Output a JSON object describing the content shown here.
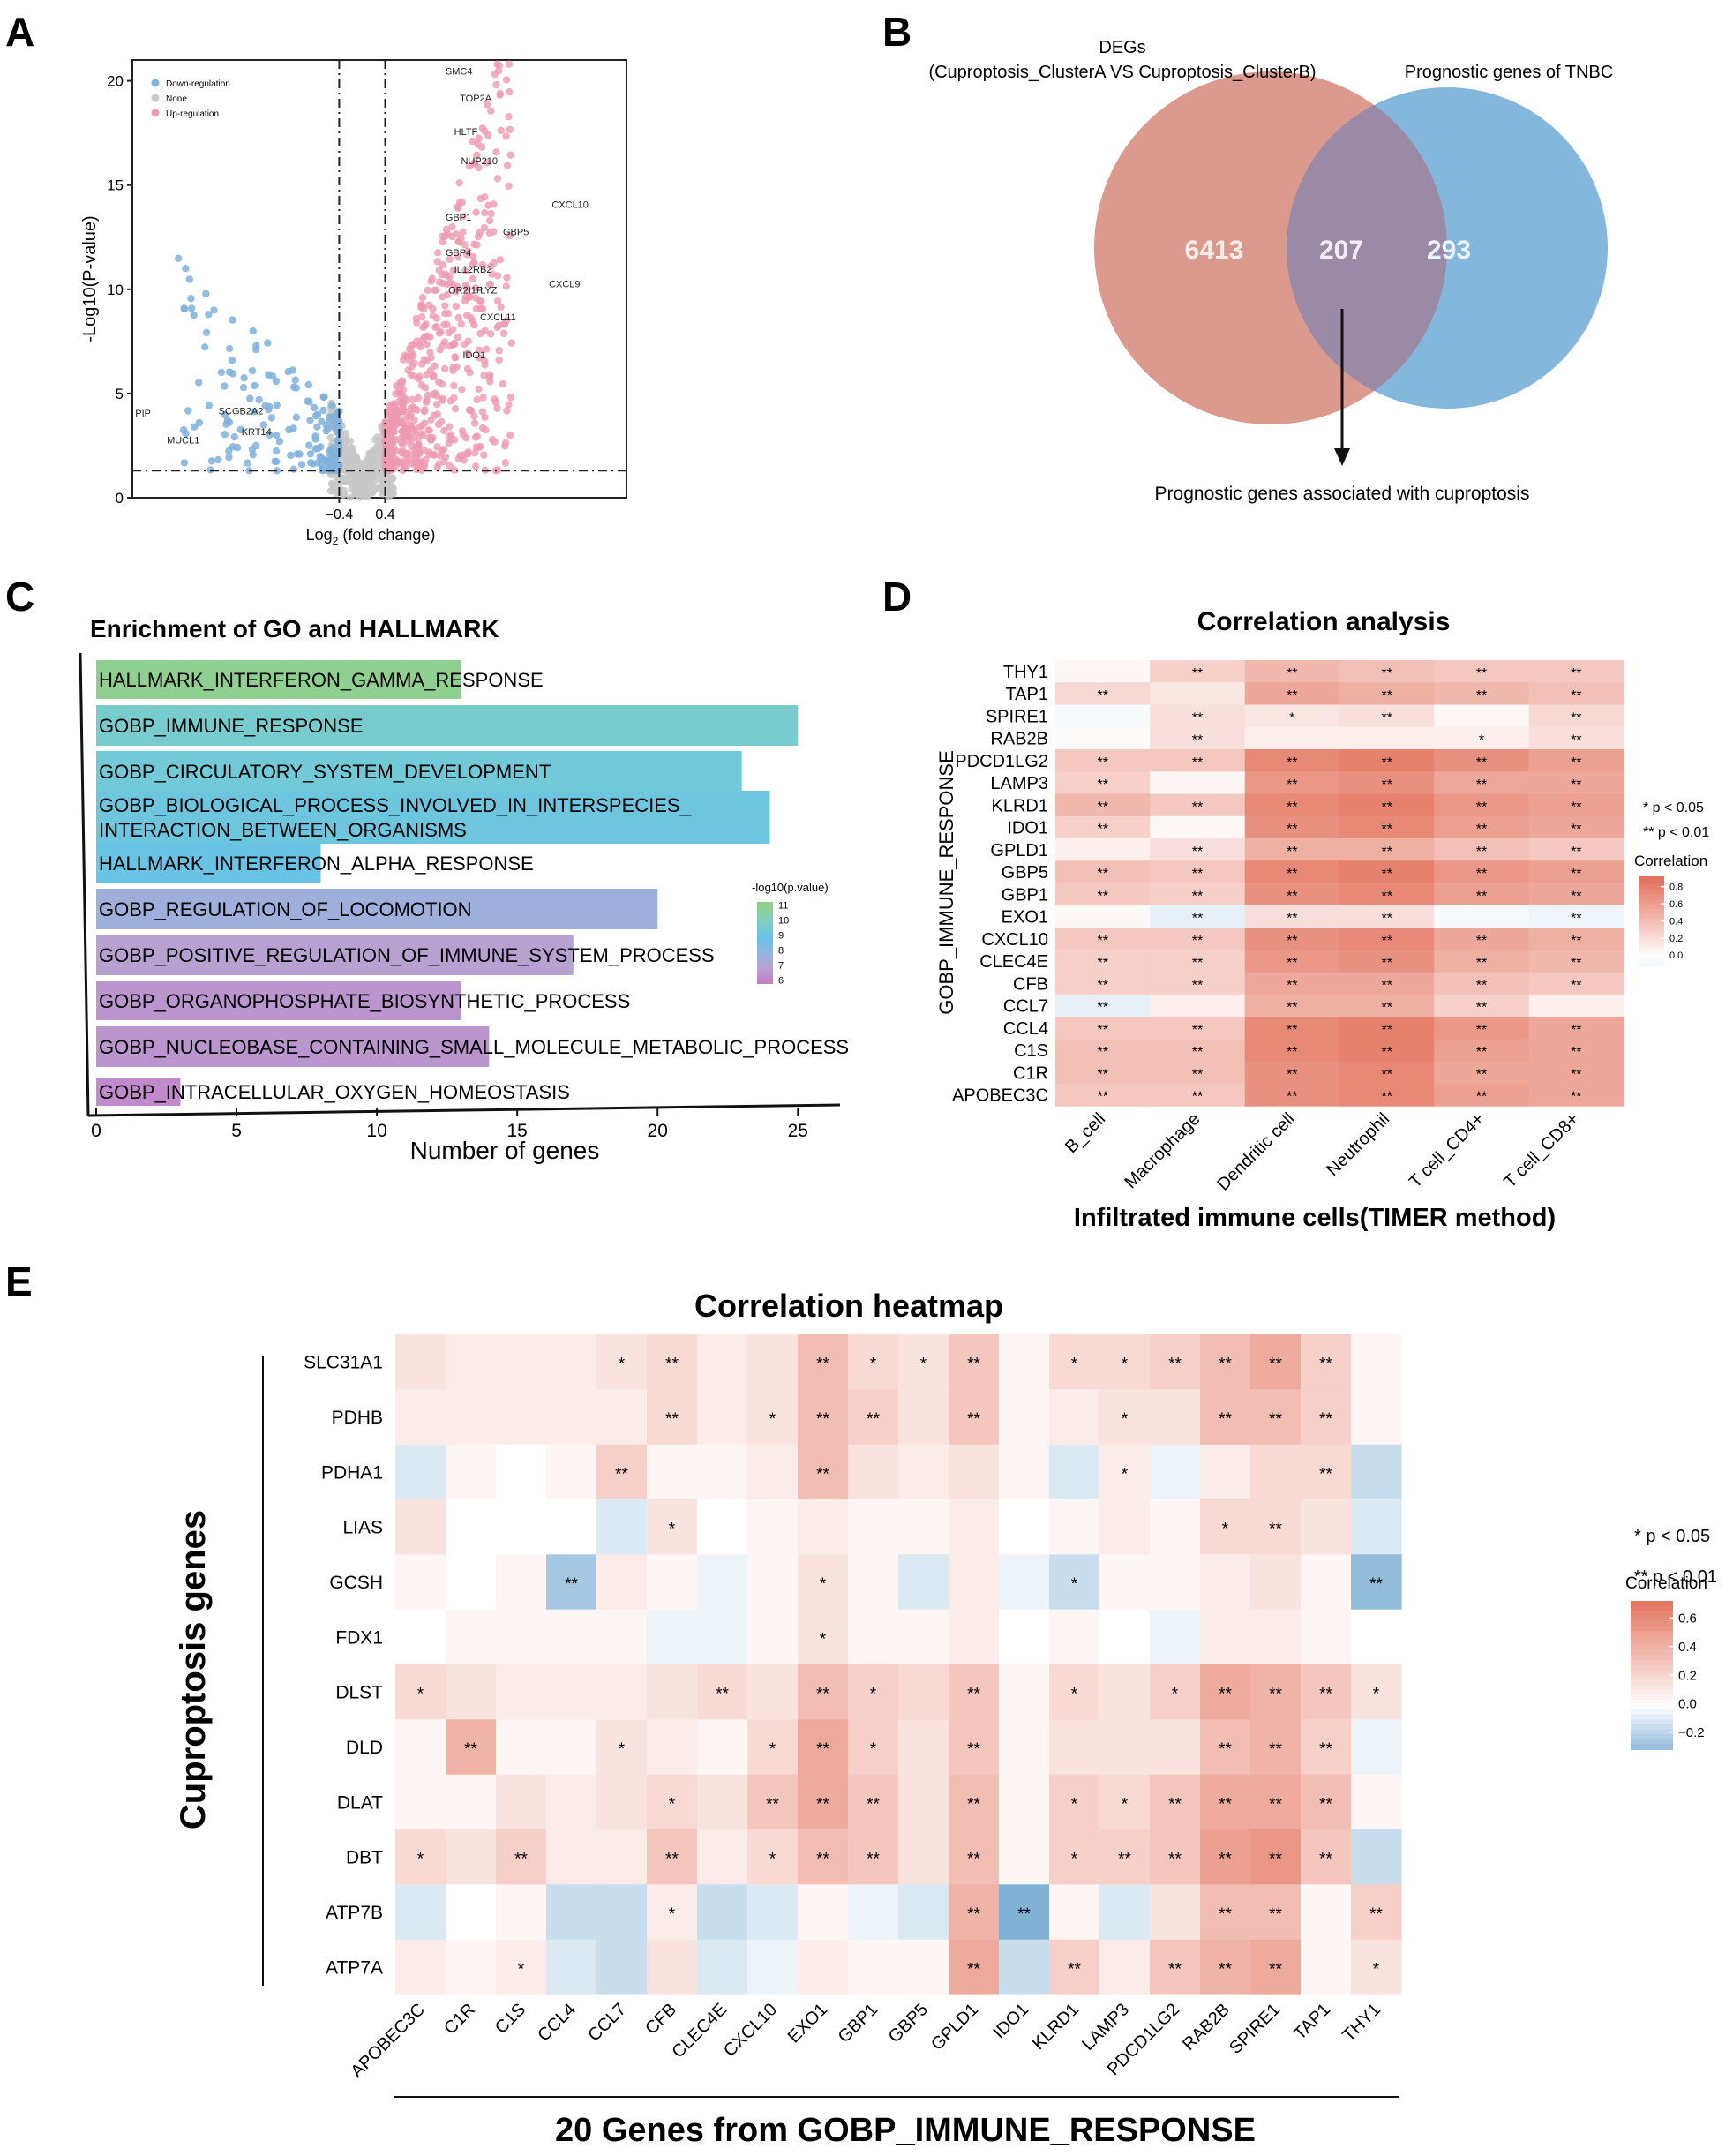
{
  "panel_letters": [
    "A",
    "B",
    "C",
    "D",
    "E"
  ],
  "chart_data": [
    {
      "panel": "A",
      "type": "scatter",
      "title": "",
      "xlabel_main": "Log",
      "xlabel_sub": "2",
      "xlabel_rest": " (fold change)",
      "ylabel": "-Log10(P-value)",
      "xlim": [
        -4,
        4.6
      ],
      "ylim": [
        0,
        21
      ],
      "x_ticks": [
        -0.4,
        0.4
      ],
      "x_tick_labels": [
        "−0.4",
        "0.4"
      ],
      "y_ticks": [
        0,
        5,
        10,
        15,
        20
      ],
      "y_tick_labels": [
        "0",
        "5",
        "10",
        "15",
        "20"
      ],
      "vlines": [
        -0.4,
        0.4
      ],
      "hline": 1.3,
      "legend": [
        {
          "label": "Down-regulation",
          "color": "#7fb2dc"
        },
        {
          "label": "None",
          "color": "#c8c8c8"
        },
        {
          "label": "Up-regulation",
          "color": "#ee9ab2"
        }
      ],
      "labeled_genes": [
        {
          "name": "SMC4",
          "x": 1.45,
          "y": 20.3
        },
        {
          "name": "TOP2A",
          "x": 1.7,
          "y": 19.0
        },
        {
          "name": "HLTF",
          "x": 1.6,
          "y": 17.4
        },
        {
          "name": "NUP210",
          "x": 1.72,
          "y": 16.0
        },
        {
          "name": "CXCL10",
          "x": 3.3,
          "y": 13.9
        },
        {
          "name": "GBP1",
          "x": 1.45,
          "y": 13.3
        },
        {
          "name": "GBP5",
          "x": 2.45,
          "y": 12.6
        },
        {
          "name": "GBP4",
          "x": 1.45,
          "y": 11.6
        },
        {
          "name": "IL12RB2",
          "x": 1.6,
          "y": 10.8
        },
        {
          "name": "CXCL9",
          "x": 3.25,
          "y": 10.1
        },
        {
          "name": "OR2I1P",
          "x": 1.5,
          "y": 9.8
        },
        {
          "name": "LYZ",
          "x": 2.05,
          "y": 9.8
        },
        {
          "name": "CXCL11",
          "x": 2.05,
          "y": 8.5
        },
        {
          "name": "IDO1",
          "x": 1.75,
          "y": 6.7
        },
        {
          "name": "PIP",
          "x": -3.95,
          "y": 3.9
        },
        {
          "name": "SCGB2A2",
          "x": -2.5,
          "y": 4.0
        },
        {
          "name": "KRT14",
          "x": -2.1,
          "y": 3.0
        },
        {
          "name": "MUCL1",
          "x": -3.4,
          "y": 2.6
        }
      ]
    },
    {
      "panel": "B",
      "type": "venn",
      "set_a_label_line1": "DEGs",
      "set_a_label_line2": "(Cuproptosis_ClusterA VS Cuproptosis_ClusterB)",
      "set_b_label": "Prognostic genes of TNBC",
      "only_a": 6413,
      "intersection": 207,
      "only_b": 293,
      "colors": {
        "a": "#dc9a8e",
        "b": "#84b7dc",
        "overlap": "#9a8aa6"
      },
      "annotation": "Prognostic genes associated with cuproptosis"
    },
    {
      "panel": "C",
      "type": "bar",
      "orientation": "horizontal",
      "title": "Enrichment of GO and HALLMARK",
      "xlabel": "Number of genes",
      "xlim": [
        0,
        26.5
      ],
      "x_ticks": [
        0,
        5,
        10,
        15,
        20,
        25
      ],
      "categories": [
        [
          "HALLMARK_INTERFERON_GAMMA_RESPONSE"
        ],
        [
          "GOBP_IMMUNE_RESPONSE"
        ],
        [
          "GOBP_CIRCULATORY_SYSTEM_DEVELOPMENT"
        ],
        [
          "GOBP_BIOLOGICAL_PROCESS_INVOLVED_IN_INTERSPECIES_",
          "INTERACTION_BETWEEN_ORGANISMS"
        ],
        [
          "HALLMARK_INTERFERON_ALPHA_RESPONSE"
        ],
        [
          "GOBP_REGULATION_OF_LOCOMOTION"
        ],
        [
          "GOBP_POSITIVE_REGULATION_OF_IMMUNE_SYSTEM_PROCESS"
        ],
        [
          "GOBP_ORGANOPHOSPHATE_BIOSYNTHETIC_PROCESS"
        ],
        [
          "GOBP_NUCLEOBASE_CONTAINING_SMALL_MOLECULE_METABOLIC_PROCESS"
        ],
        [
          "GOBP_INTRACELLULAR_OXYGEN_HOMEOSTASIS"
        ]
      ],
      "values": [
        13,
        25,
        23,
        24,
        8,
        20,
        17,
        13,
        14,
        3
      ],
      "log10p": [
        11,
        9.8,
        9.5,
        9.3,
        9.1,
        7.6,
        6.9,
        6.6,
        6.6,
        6.3
      ],
      "legend_title": "-log10(p.value)",
      "legend_ticks": [
        11,
        10,
        9,
        8,
        7,
        6
      ]
    },
    {
      "panel": "D",
      "type": "heatmap",
      "title": "Correlation analysis",
      "xlabel": "Infiltrated immune cells(TIMER method)",
      "ylabel": "GOBP_IMMUNE_RESPONSE",
      "columns": [
        "B_cell",
        "Macrophage",
        "Dendritic cell",
        "Neutrophil",
        "T cell_CD4+",
        "T cell_CD8+"
      ],
      "rows": [
        "THY1",
        "TAP1",
        "SPIRE1",
        "RAB2B",
        "PDCD1LG2",
        "LAMP3",
        "KLRD1",
        "IDO1",
        "GPLD1",
        "GBP5",
        "GBP1",
        "EXO1",
        "CXCL10",
        "CLEC4E",
        "CFB",
        "CCL7",
        "CCL4",
        "C1S",
        "C1R",
        "APOBEC3C"
      ],
      "values": [
        [
          0.05,
          0.3,
          0.45,
          0.4,
          0.35,
          0.35
        ],
        [
          0.25,
          0.15,
          0.55,
          0.5,
          0.45,
          0.4
        ],
        [
          -0.05,
          0.2,
          0.15,
          0.2,
          0.05,
          0.25
        ],
        [
          0.02,
          0.2,
          0.1,
          0.1,
          0.1,
          0.2
        ],
        [
          0.35,
          0.35,
          0.75,
          0.8,
          0.7,
          0.6
        ],
        [
          0.3,
          0.05,
          0.65,
          0.7,
          0.55,
          0.55
        ],
        [
          0.45,
          0.35,
          0.75,
          0.8,
          0.65,
          0.6
        ],
        [
          0.3,
          0.05,
          0.7,
          0.75,
          0.6,
          0.55
        ],
        [
          0.1,
          0.2,
          0.5,
          0.5,
          0.4,
          0.35
        ],
        [
          0.4,
          0.35,
          0.75,
          0.8,
          0.65,
          0.6
        ],
        [
          0.35,
          0.3,
          0.7,
          0.75,
          0.6,
          0.55
        ],
        [
          0.05,
          -0.15,
          0.2,
          0.2,
          -0.05,
          -0.1
        ],
        [
          0.35,
          0.35,
          0.7,
          0.75,
          0.55,
          0.5
        ],
        [
          0.3,
          0.3,
          0.65,
          0.7,
          0.5,
          0.45
        ],
        [
          0.3,
          0.3,
          0.55,
          0.55,
          0.4,
          0.35
        ],
        [
          -0.15,
          0.1,
          0.5,
          0.5,
          0.3,
          0.1
        ],
        [
          0.35,
          0.35,
          0.75,
          0.8,
          0.65,
          0.55
        ],
        [
          0.4,
          0.4,
          0.75,
          0.8,
          0.6,
          0.55
        ],
        [
          0.4,
          0.4,
          0.7,
          0.75,
          0.55,
          0.55
        ],
        [
          0.35,
          0.35,
          0.7,
          0.75,
          0.6,
          0.55
        ]
      ],
      "significance": [
        [
          "",
          "**",
          "**",
          "**",
          "**",
          "**"
        ],
        [
          "**",
          "",
          "**",
          "**",
          "**",
          "**"
        ],
        [
          "",
          "**",
          "*",
          "**",
          "",
          "**"
        ],
        [
          "",
          "**",
          "",
          "",
          "*",
          "**"
        ],
        [
          "**",
          "**",
          "**",
          "**",
          "**",
          "**"
        ],
        [
          "**",
          "",
          "**",
          "**",
          "**",
          "**"
        ],
        [
          "**",
          "**",
          "**",
          "**",
          "**",
          "**"
        ],
        [
          "**",
          "",
          "**",
          "**",
          "**",
          "**"
        ],
        [
          "",
          "**",
          "**",
          "**",
          "**",
          "**"
        ],
        [
          "**",
          "**",
          "**",
          "**",
          "**",
          "**"
        ],
        [
          "**",
          "**",
          "**",
          "**",
          "**",
          "**"
        ],
        [
          "",
          "**",
          "**",
          "**",
          "",
          "**"
        ],
        [
          "**",
          "**",
          "**",
          "**",
          "**",
          "**"
        ],
        [
          "**",
          "**",
          "**",
          "**",
          "**",
          "**"
        ],
        [
          "**",
          "**",
          "**",
          "**",
          "**",
          "**"
        ],
        [
          "**",
          "",
          "**",
          "**",
          "**",
          ""
        ],
        [
          "**",
          "**",
          "**",
          "**",
          "**",
          "**"
        ],
        [
          "**",
          "**",
          "**",
          "**",
          "**",
          "**"
        ],
        [
          "**",
          "**",
          "**",
          "**",
          "**",
          "**"
        ],
        [
          "**",
          "**",
          "**",
          "**",
          "**",
          "**"
        ]
      ],
      "sig_legend": [
        "* p < 0.05",
        "** p < 0.01"
      ],
      "legend_title": "Correlation",
      "legend_ticks": [
        "0.8",
        "0.6",
        "0.4",
        "0.2",
        "0.0"
      ],
      "legend_tick_values": [
        0.8,
        0.6,
        0.4,
        0.2,
        0.0
      ]
    },
    {
      "panel": "E",
      "type": "heatmap",
      "title": "Correlation heatmap",
      "xlabel": "20 Genes from GOBP_IMMUNE_RESPONSE",
      "ylabel": "Cuproptosis genes",
      "columns": [
        "APOBEC3C",
        "C1R",
        "C1S",
        "CCL4",
        "CCL7",
        "CFB",
        "CLEC4E",
        "CXCL10",
        "EXO1",
        "GBP1",
        "GBP5",
        "GPLD1",
        "IDO1",
        "KLRD1",
        "LAMP3",
        "PDCD1LG2",
        "RAB2B",
        "SPIRE1",
        "TAP1",
        "THY1"
      ],
      "rows": [
        "SLC31A1",
        "PDHB",
        "PDHA1",
        "LIAS",
        "GCSH",
        "FDX1",
        "DLST",
        "DLD",
        "DLAT",
        "DBT",
        "ATP7B",
        "ATP7A"
      ],
      "values": [
        [
          0.15,
          0.1,
          0.1,
          0.1,
          0.15,
          0.2,
          0.1,
          0.15,
          0.35,
          0.2,
          0.15,
          0.3,
          0.05,
          0.2,
          0.2,
          0.25,
          0.35,
          0.45,
          0.25,
          0.05
        ],
        [
          0.1,
          0.1,
          0.1,
          0.1,
          0.1,
          0.2,
          0.1,
          0.15,
          0.35,
          0.25,
          0.15,
          0.3,
          0.05,
          0.1,
          0.15,
          0.15,
          0.35,
          0.35,
          0.25,
          0.05
        ],
        [
          -0.1,
          0.05,
          0.0,
          0.05,
          0.25,
          0.05,
          0.05,
          0.1,
          0.35,
          0.15,
          0.1,
          0.15,
          0.05,
          -0.1,
          0.1,
          -0.05,
          0.1,
          0.2,
          0.2,
          -0.15
        ],
        [
          0.15,
          0.0,
          0.0,
          0.0,
          -0.1,
          0.15,
          0.0,
          0.05,
          0.1,
          0.05,
          0.05,
          0.1,
          0.0,
          0.05,
          0.1,
          0.05,
          0.2,
          0.2,
          0.15,
          -0.1
        ],
        [
          0.05,
          0.0,
          0.05,
          -0.25,
          0.1,
          0.05,
          -0.05,
          0.05,
          0.15,
          0.05,
          -0.1,
          0.1,
          -0.05,
          -0.15,
          0.05,
          0.05,
          0.1,
          0.15,
          0.05,
          -0.3
        ],
        [
          0.0,
          0.05,
          0.05,
          0.05,
          0.05,
          -0.05,
          -0.05,
          0.05,
          0.15,
          0.05,
          0.05,
          0.1,
          0.0,
          0.05,
          0.0,
          -0.05,
          0.1,
          0.1,
          0.05,
          0.0
        ],
        [
          0.2,
          0.15,
          0.1,
          0.1,
          0.1,
          0.15,
          0.2,
          0.15,
          0.35,
          0.25,
          0.2,
          0.3,
          0.05,
          0.2,
          0.15,
          0.25,
          0.45,
          0.4,
          0.3,
          0.15
        ],
        [
          0.05,
          0.4,
          0.05,
          0.05,
          0.15,
          0.1,
          0.05,
          0.2,
          0.45,
          0.25,
          0.15,
          0.3,
          0.05,
          0.15,
          0.15,
          0.15,
          0.35,
          0.4,
          0.25,
          -0.05
        ],
        [
          0.05,
          0.05,
          0.15,
          0.1,
          0.15,
          0.2,
          0.15,
          0.3,
          0.45,
          0.3,
          0.15,
          0.35,
          0.05,
          0.25,
          0.2,
          0.3,
          0.45,
          0.45,
          0.35,
          0.05
        ],
        [
          0.2,
          0.15,
          0.25,
          0.1,
          0.1,
          0.3,
          0.1,
          0.2,
          0.35,
          0.3,
          0.15,
          0.35,
          0.05,
          0.25,
          0.25,
          0.3,
          0.5,
          0.55,
          0.3,
          -0.15
        ],
        [
          -0.1,
          0.0,
          0.05,
          -0.15,
          -0.15,
          0.1,
          -0.15,
          -0.1,
          0.05,
          -0.05,
          -0.1,
          0.4,
          -0.35,
          0.05,
          -0.1,
          0.15,
          0.35,
          0.35,
          0.05,
          0.25
        ],
        [
          0.1,
          0.05,
          0.1,
          -0.1,
          -0.15,
          0.15,
          -0.1,
          -0.05,
          0.1,
          0.05,
          0.05,
          0.45,
          -0.15,
          0.25,
          0.1,
          0.3,
          0.4,
          0.45,
          0.05,
          0.15
        ]
      ],
      "significance": [
        [
          "",
          "",
          "",
          "",
          "*",
          "**",
          "",
          "",
          "**",
          "*",
          "*",
          "**",
          "",
          "*",
          "*",
          "**",
          "**",
          "**",
          "**",
          ""
        ],
        [
          "",
          "",
          "",
          "",
          "",
          "**",
          "",
          "*",
          "**",
          "**",
          "",
          "**",
          "",
          "",
          "*",
          "",
          "**",
          "**",
          "**",
          ""
        ],
        [
          "",
          "",
          "",
          "",
          "**",
          "",
          "",
          "",
          "**",
          "",
          "",
          "",
          "",
          "",
          "*",
          "",
          "",
          "",
          "**",
          ""
        ],
        [
          "",
          "",
          "",
          "",
          "",
          "*",
          "",
          "",
          "",
          "",
          "",
          "",
          "",
          "",
          "",
          "",
          "*",
          "**",
          "",
          ""
        ],
        [
          "",
          "",
          "",
          "**",
          "",
          "",
          "",
          "",
          "*",
          "",
          "",
          "",
          "",
          "*",
          "",
          "",
          "",
          "",
          "",
          "**"
        ],
        [
          "",
          "",
          "",
          "",
          "",
          "",
          "",
          "",
          "*",
          "",
          "",
          "",
          "",
          "",
          "",
          "",
          "",
          "",
          "",
          ""
        ],
        [
          "*",
          "",
          "",
          "",
          "",
          "",
          "**",
          "",
          "**",
          "*",
          "",
          "**",
          "",
          "*",
          "",
          "*",
          "**",
          "**",
          "**",
          "*"
        ],
        [
          "",
          "**",
          "",
          "",
          "*",
          "",
          "",
          "*",
          "**",
          "*",
          "",
          "**",
          "",
          "",
          "",
          "",
          "**",
          "**",
          "**",
          ""
        ],
        [
          "",
          "",
          "",
          "",
          "",
          "*",
          "",
          "**",
          "**",
          "**",
          "",
          "**",
          "",
          "*",
          "*",
          "**",
          "**",
          "**",
          "**",
          ""
        ],
        [
          "*",
          "",
          "**",
          "",
          "",
          "**",
          "",
          "*",
          "**",
          "**",
          "",
          "**",
          "",
          "*",
          "**",
          "**",
          "**",
          "**",
          "**",
          ""
        ],
        [
          "",
          "",
          "",
          "",
          "",
          "*",
          "",
          "",
          "",
          "",
          "",
          "**",
          "**",
          "",
          "",
          "",
          "**",
          "**",
          "",
          "**"
        ],
        [
          "",
          "",
          "*",
          "",
          "",
          "",
          "",
          "",
          "",
          "",
          "",
          "**",
          "",
          "**",
          "",
          "**",
          "**",
          "**",
          "",
          "*"
        ]
      ],
      "sig_legend": [
        "* p < 0.05",
        "** p < 0.01"
      ],
      "legend_title": "Correlation",
      "legend_ticks": [
        "0.6",
        "0.4",
        "0.2",
        "0.0",
        "−0.2"
      ],
      "legend_tick_values": [
        0.6,
        0.4,
        0.2,
        0.0,
        -0.2
      ]
    }
  ]
}
